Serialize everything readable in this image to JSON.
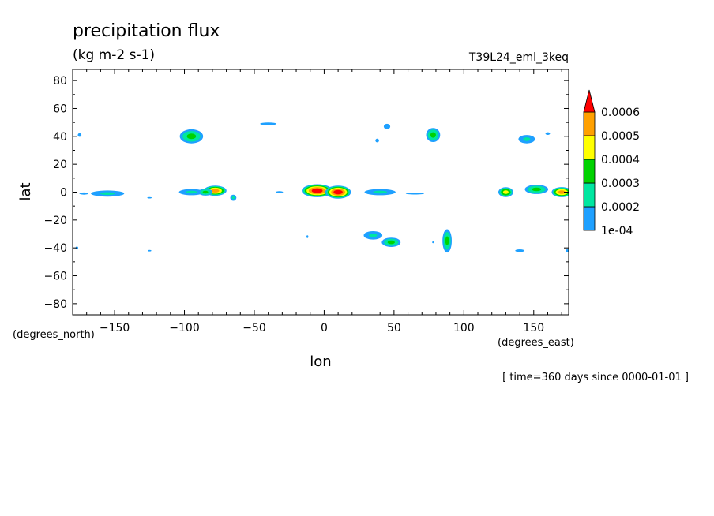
{
  "chart_data": {
    "type": "contour",
    "title": "precipitation flux",
    "units": "(kg m-2 s-1)",
    "dataset": "T39L24_eml_3keq",
    "xlabel": "lon",
    "ylabel": "lat",
    "x_units": "(degrees_east)",
    "y_units": "(degrees_north)",
    "xlim": [
      -180,
      175
    ],
    "ylim": [
      -88,
      88
    ],
    "x_ticks": [
      -150,
      -100,
      -50,
      0,
      50,
      100,
      150
    ],
    "y_ticks": [
      80,
      60,
      40,
      20,
      0,
      -20,
      -40,
      -60,
      -80
    ],
    "time_note": "[ time=360 days since 0000-01-01 ]",
    "levels": [
      {
        "label": "1e-04",
        "value": 0.0001,
        "color": "#1ea0ff"
      },
      {
        "label": "0.0002",
        "value": 0.0002,
        "color": "#00e6a0"
      },
      {
        "label": "0.0003",
        "value": 0.0003,
        "color": "#00d200"
      },
      {
        "label": "0.0004",
        "value": 0.0004,
        "color": "#ffff00"
      },
      {
        "label": "0.0005",
        "value": 0.0005,
        "color": "#ffa000"
      },
      {
        "label": "0.0006",
        "value": 0.0006,
        "color": "#ff0000"
      }
    ],
    "features": [
      {
        "lon": -155,
        "lat": -1,
        "w": 16,
        "h": 3,
        "peak": 0.0002
      },
      {
        "lon": -172,
        "lat": -1,
        "w": 10,
        "h": 2.5,
        "peak": 0.0001
      },
      {
        "lon": -175,
        "lat": 41,
        "w": 4,
        "h": 4,
        "peak": 0.0001
      },
      {
        "lon": -177,
        "lat": -40,
        "w": 3,
        "h": 3,
        "peak": 0.0001
      },
      {
        "lon": -125,
        "lat": -4,
        "w": 5,
        "h": 1.5,
        "peak": 0.0001
      },
      {
        "lon": -125,
        "lat": -42,
        "w": 4,
        "h": 1.5,
        "peak": 0.0001
      },
      {
        "lon": -95,
        "lat": 40,
        "w": 10,
        "h": 6,
        "peak": 0.0003
      },
      {
        "lon": -95,
        "lat": 0,
        "w": 12,
        "h": 3,
        "peak": 0.0002
      },
      {
        "lon": -78,
        "lat": 1,
        "w": 9,
        "h": 4,
        "peak": 0.0005
      },
      {
        "lon": -85,
        "lat": 0,
        "w": 6,
        "h": 3,
        "peak": 0.0003
      },
      {
        "lon": -65,
        "lat": -4,
        "w": 3,
        "h": 3,
        "peak": 0.0002
      },
      {
        "lon": -40,
        "lat": 49,
        "w": 18,
        "h": 3,
        "peak": 0.0001
      },
      {
        "lon": -32,
        "lat": 0,
        "w": 8,
        "h": 2,
        "peak": 0.0001
      },
      {
        "lon": -12,
        "lat": -32,
        "w": 2,
        "h": 3,
        "peak": 0.0001
      },
      {
        "lon": -5,
        "lat": 1,
        "w": 12,
        "h": 5,
        "peak": 0.0006
      },
      {
        "lon": 10,
        "lat": 0,
        "w": 10,
        "h": 5,
        "peak": 0.0006
      },
      {
        "lon": 40,
        "lat": 0,
        "w": 15,
        "h": 3,
        "peak": 0.0002
      },
      {
        "lon": 65,
        "lat": -1,
        "w": 20,
        "h": 2,
        "peak": 0.0001
      },
      {
        "lon": 45,
        "lat": 47,
        "w": 7,
        "h": 6,
        "peak": 0.0001
      },
      {
        "lon": 38,
        "lat": 37,
        "w": 4,
        "h": 4,
        "peak": 0.0001
      },
      {
        "lon": 78,
        "lat": 41,
        "w": 6,
        "h": 6,
        "peak": 0.0003
      },
      {
        "lon": 35,
        "lat": -31,
        "w": 9,
        "h": 4,
        "peak": 0.0002
      },
      {
        "lon": 48,
        "lat": -36,
        "w": 8,
        "h": 4,
        "peak": 0.0003
      },
      {
        "lon": 88,
        "lat": -35,
        "w": 4,
        "h": 10,
        "peak": 0.0003
      },
      {
        "lon": 78,
        "lat": -36,
        "w": 2,
        "h": 2,
        "peak": 0.0001
      },
      {
        "lon": 130,
        "lat": 0,
        "w": 6,
        "h": 4,
        "peak": 0.0004
      },
      {
        "lon": 152,
        "lat": 2,
        "w": 10,
        "h": 4,
        "peak": 0.0003
      },
      {
        "lon": 170,
        "lat": 0,
        "w": 8,
        "h": 4,
        "peak": 0.0005
      },
      {
        "lon": 145,
        "lat": 38,
        "w": 8,
        "h": 4,
        "peak": 0.0002
      },
      {
        "lon": 160,
        "lat": 42,
        "w": 5,
        "h": 3,
        "peak": 0.0001
      },
      {
        "lon": 140,
        "lat": -42,
        "w": 10,
        "h": 3,
        "peak": 0.0001
      },
      {
        "lon": 174,
        "lat": -42,
        "w": 3,
        "h": 3,
        "peak": 0.0001
      }
    ]
  }
}
